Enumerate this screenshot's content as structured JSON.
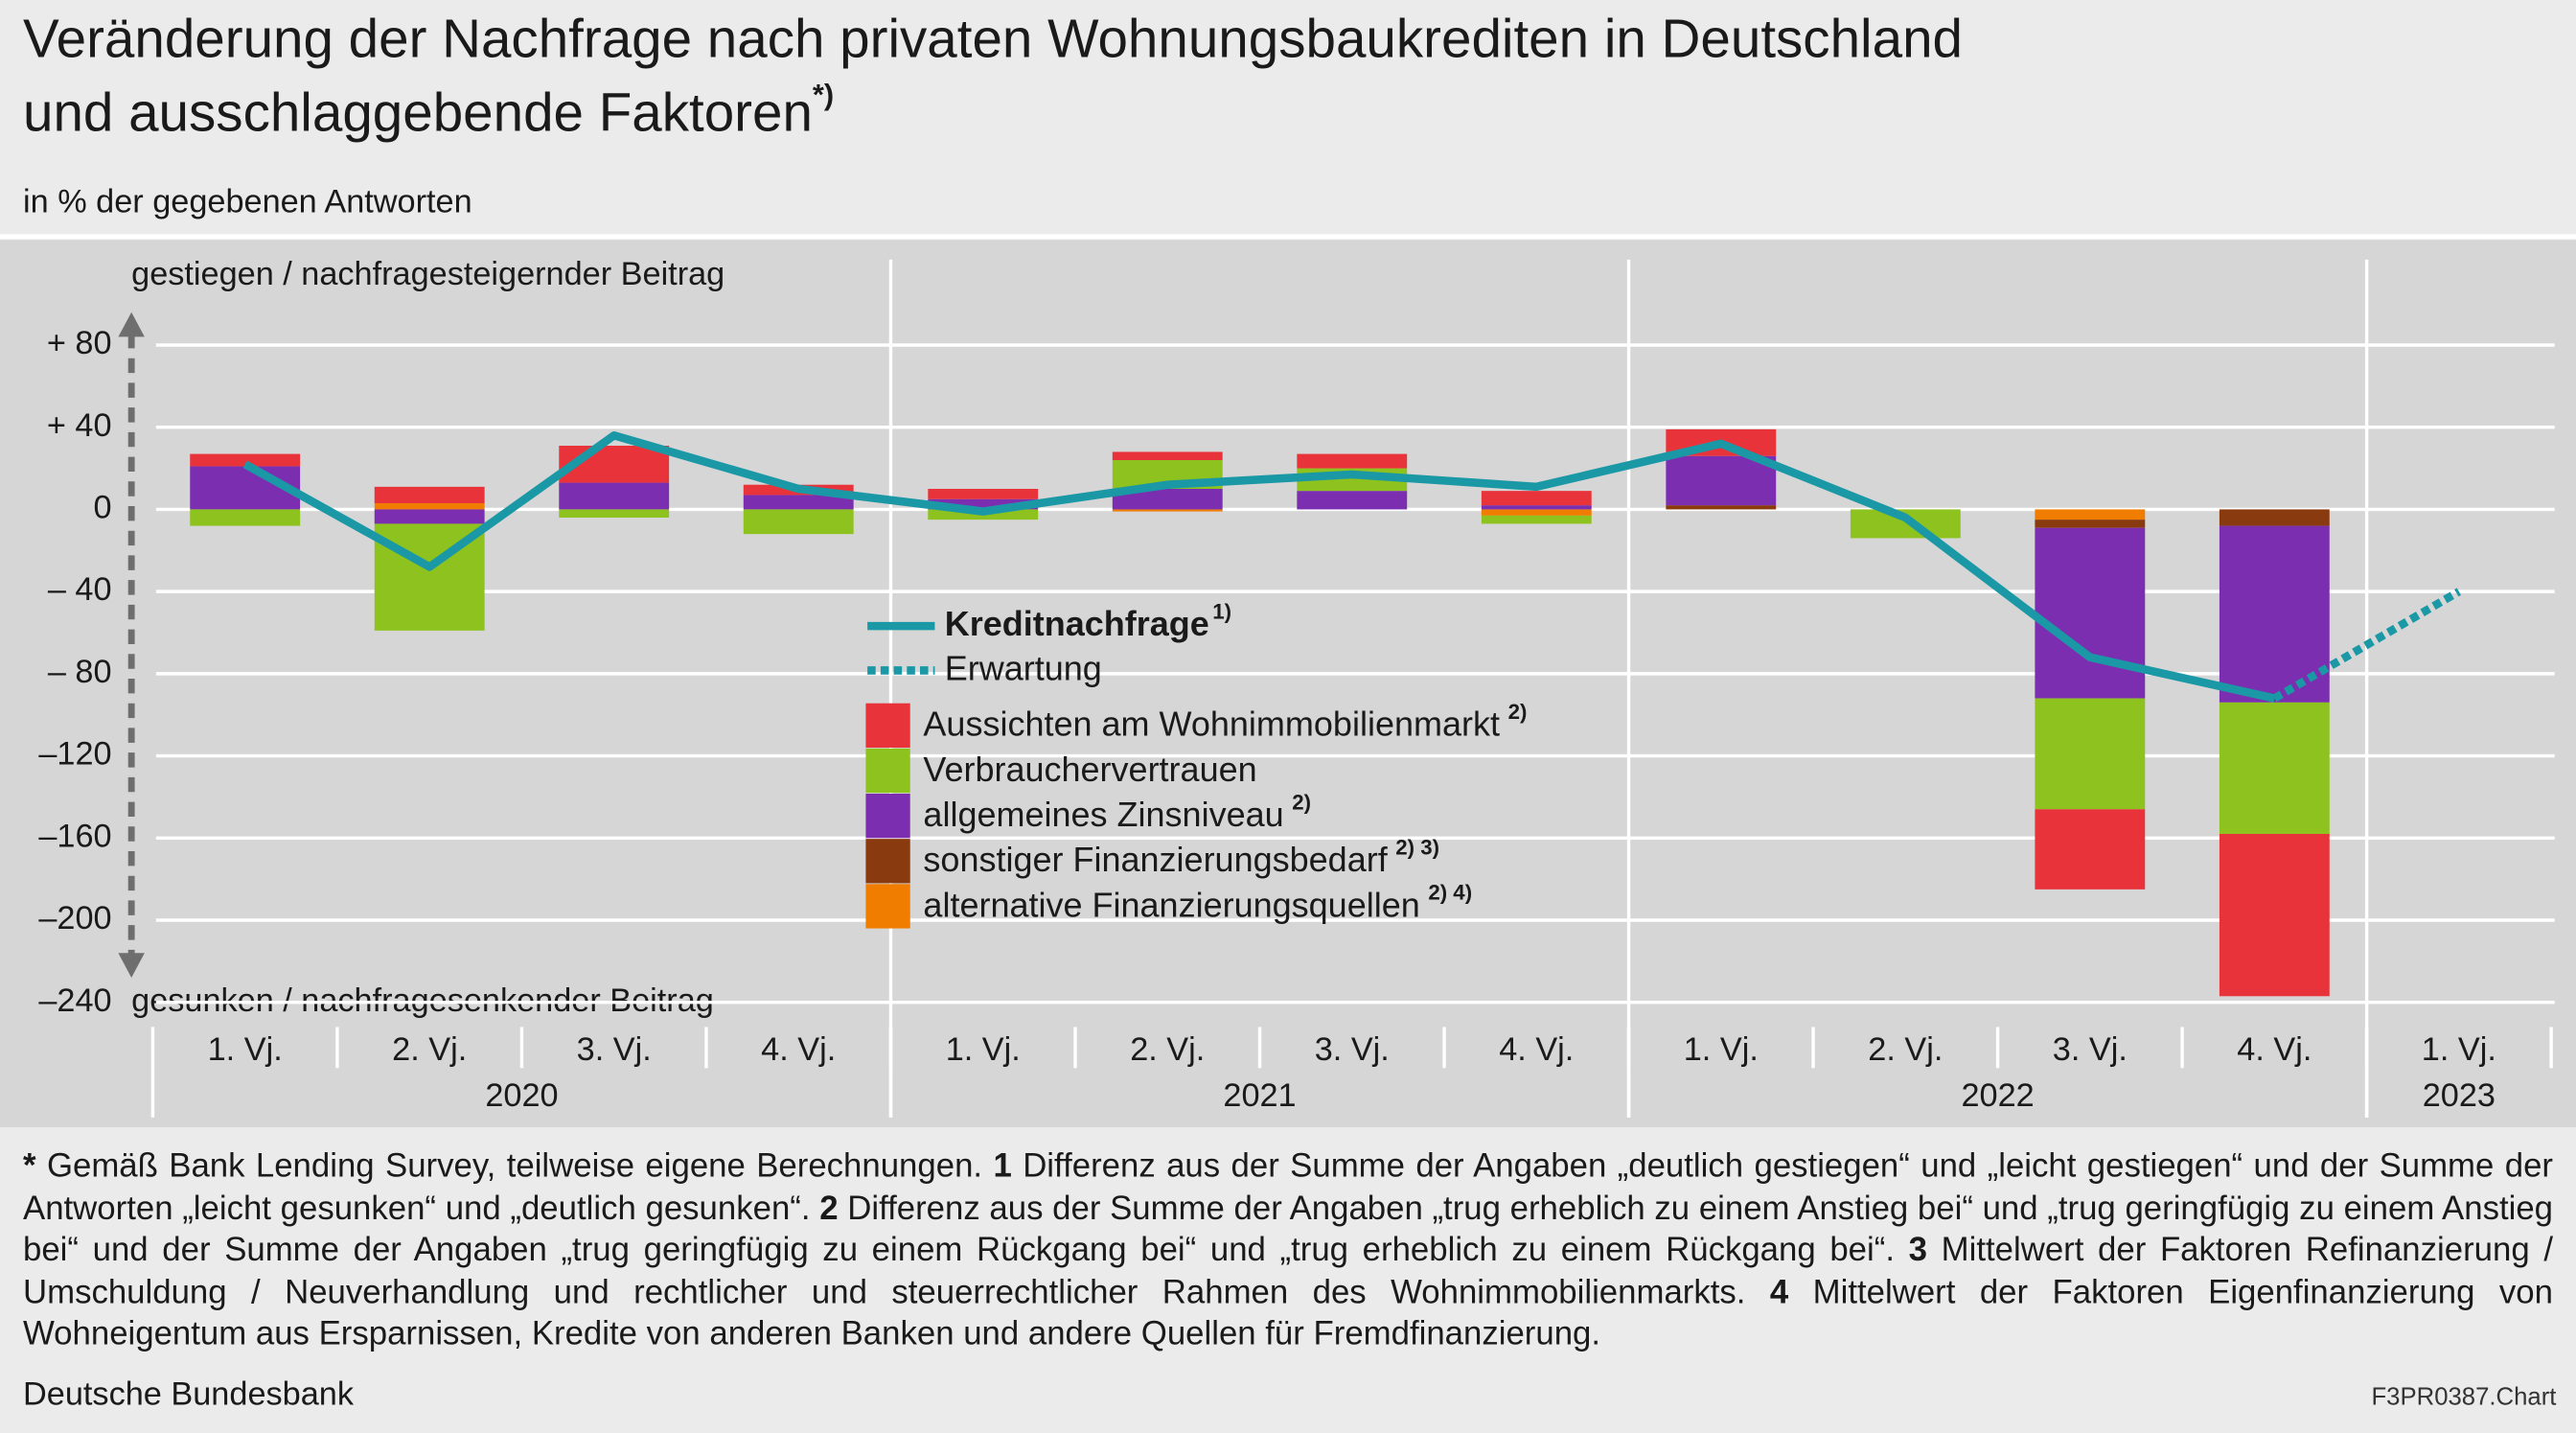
{
  "chart_data": {
    "type": "bar",
    "title": [
      "Veränderung der Nachfrage nach privaten Wohnungsbaukrediten in Deutschland",
      "und ausschlaggebende Faktoren"
    ],
    "title_note": "*)",
    "subtitle": "in % der gegebenen Antworten",
    "y_label_top": "gestiegen / nachfragesteigernder Beitrag",
    "y_label_bottom": "gesunken / nachfragesenkender Beitrag",
    "categories": [
      "1. Vj.",
      "2. Vj.",
      "3. Vj.",
      "4. Vj.",
      "1. Vj.",
      "2. Vj.",
      "3. Vj.",
      "4. Vj.",
      "1. Vj.",
      "2. Vj.",
      "3. Vj.",
      "4. Vj.",
      "1. Vj."
    ],
    "groups": [
      {
        "name": "2020",
        "span": 4
      },
      {
        "name": "2021",
        "span": 4
      },
      {
        "name": "2022",
        "span": 4
      },
      {
        "name": "2023",
        "span": 1
      }
    ],
    "ylim": [
      -240,
      80
    ],
    "yticks": [
      {
        "value": 80,
        "label": "+ 80"
      },
      {
        "value": 40,
        "label": "+ 40"
      },
      0,
      {
        "value": -40,
        "label": "– 40"
      },
      {
        "value": -80,
        "label": "– 80"
      },
      {
        "value": -120,
        "label": "–120"
      },
      {
        "value": -160,
        "label": "–160"
      },
      {
        "value": -200,
        "label": "–200"
      },
      {
        "value": -240,
        "label": "–240"
      }
    ],
    "grid": true,
    "series": [
      {
        "name": "Aussichten am Wohnimmobilienmarkt",
        "note": "2)",
        "color": "#e8333a",
        "values": [
          6,
          8,
          18,
          5,
          5,
          4,
          7,
          7,
          13,
          0,
          -39,
          -79,
          null
        ]
      },
      {
        "name": "Verbrauchervertrauen",
        "color": "#8dc21f",
        "values": [
          -8,
          -52,
          -4,
          -12,
          -5,
          14,
          11,
          -4,
          0,
          -14,
          -54,
          -64,
          null
        ]
      },
      {
        "name": "allgemeines Zinsniveau",
        "note": "2)",
        "color": "#7b2eb0",
        "values": [
          21,
          -7,
          13,
          7,
          5,
          10,
          9,
          2,
          24,
          0,
          -83,
          -86,
          null
        ]
      },
      {
        "name": "sonstiger Finanzierungsbedarf",
        "note": "2) 3)",
        "color": "#8a3a0f",
        "values": [
          0,
          0,
          0,
          0,
          0,
          0,
          0,
          0,
          2,
          0,
          -4,
          -8,
          null
        ]
      },
      {
        "name": "alternative Finanzierungsquellen",
        "note": "2) 4)",
        "color": "#f07c00",
        "values": [
          0,
          3,
          0,
          0,
          0,
          -1,
          0,
          -3,
          0,
          0,
          -5,
          0,
          null
        ]
      }
    ],
    "lines": [
      {
        "name": "Kreditnachfrage",
        "note": "1)",
        "color": "#1b98a5",
        "values": [
          22,
          -28,
          36,
          10,
          -1,
          12,
          17,
          11,
          32,
          -4,
          -72,
          -92,
          null
        ]
      },
      {
        "name": "Erwartung",
        "color": "#1b98a5",
        "dashed": true,
        "values": [
          null,
          null,
          null,
          null,
          null,
          null,
          null,
          null,
          null,
          null,
          null,
          -92,
          -40
        ]
      }
    ],
    "footnote": [
      {
        "marker": "*",
        "text": " Gemäß Bank Lending Survey, teilweise eigene Berechnungen. "
      },
      {
        "marker": "1",
        "text": " Differenz aus der Summe der Angaben „deutlich gestiegen“ und „leicht gestiegen“ und der Summe der Antworten „leicht gesunken“ und „deutlich gesunken“. "
      },
      {
        "marker": "2",
        "text": " Differenz aus der Summe der Angaben „trug erheblich zu einem Anstieg bei“ und „trug geringfügig zu einem Anstieg bei“ und der Summe der Angaben „trug geringfügig zu einem Rückgang bei“ und „trug erheblich zu einem Rückgang bei“. "
      },
      {
        "marker": "3",
        "text": " Mittelwert der Faktoren Refinanzierung / Umschuldung / Neuverhandlung und rechtlicher und steuerrechtlicher Rahmen des Wohnimmobilienmarkts. "
      },
      {
        "marker": "4",
        "text": " Mittelwert der Faktoren Eigenfinanzierung von Wohneigentum aus Ersparnissen, Kredite von anderen Banken und andere Quellen für Fremdfinanzierung."
      }
    ],
    "source": "Deutsche Bundesbank",
    "code": "F3PR0387.Chart"
  }
}
